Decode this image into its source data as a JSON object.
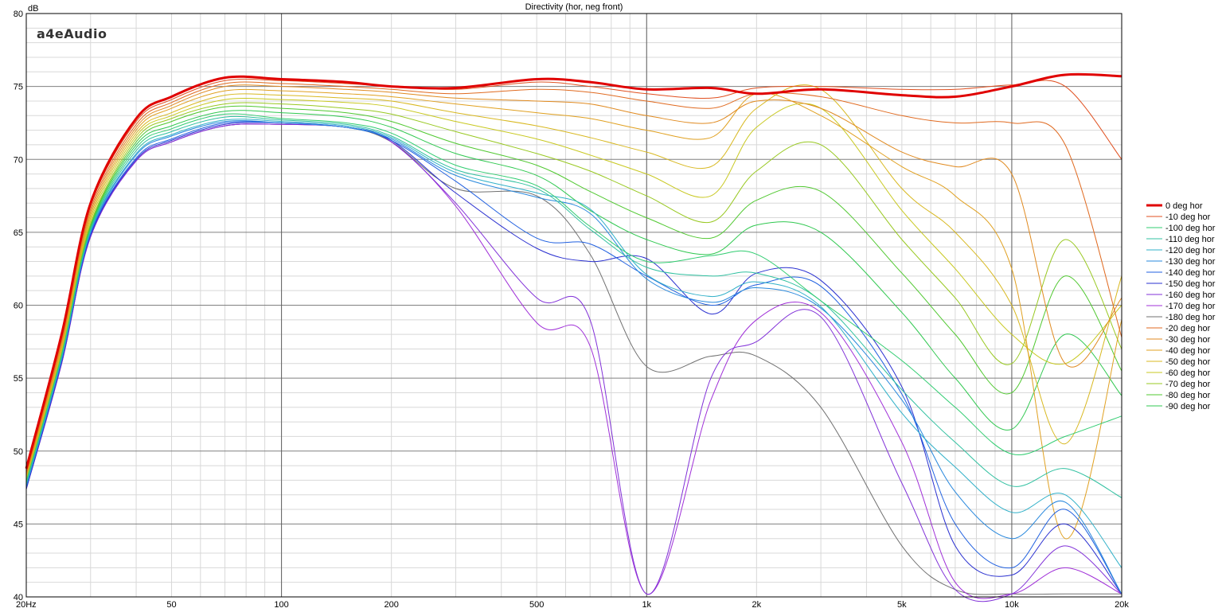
{
  "chart_data": {
    "type": "line",
    "title": "Directivity (hor, neg front)",
    "ylabel": "dB",
    "xlabel": "",
    "x_scale": "log",
    "xlim": [
      20,
      20000
    ],
    "ylim": [
      40,
      80
    ],
    "x_ticks": [
      {
        "value": 20,
        "label": "20Hz"
      },
      {
        "value": 50,
        "label": "50"
      },
      {
        "value": 100,
        "label": "100"
      },
      {
        "value": 200,
        "label": "200"
      },
      {
        "value": 500,
        "label": "500"
      },
      {
        "value": 1000,
        "label": "1k"
      },
      {
        "value": 2000,
        "label": "2k"
      },
      {
        "value": 5000,
        "label": "5k"
      },
      {
        "value": 10000,
        "label": "10k"
      },
      {
        "value": 20000,
        "label": "20k"
      }
    ],
    "y_ticks": [
      {
        "value": 40,
        "label": "40"
      },
      {
        "value": 45,
        "label": "45"
      },
      {
        "value": 50,
        "label": "50"
      },
      {
        "value": 55,
        "label": "55"
      },
      {
        "value": 60,
        "label": "60"
      },
      {
        "value": 65,
        "label": "65"
      },
      {
        "value": 70,
        "label": "70"
      },
      {
        "value": 75,
        "label": "75"
      },
      {
        "value": 80,
        "label": "80"
      }
    ],
    "grid": true,
    "legend_position": "right",
    "x": [
      20,
      25,
      30,
      40,
      50,
      70,
      100,
      150,
      200,
      300,
      500,
      700,
      1000,
      1500,
      2000,
      3000,
      5000,
      7000,
      10000,
      14000,
      20000
    ],
    "series": [
      {
        "name": "0 deg hor",
        "color": "#e00000",
        "width": 3,
        "values": [
          48.8,
          58.0,
          67.0,
          72.8,
          74.3,
          75.6,
          75.5,
          75.3,
          75.0,
          74.9,
          75.5,
          75.3,
          74.8,
          74.9,
          74.5,
          74.8,
          74.4,
          74.3,
          75.0,
          75.8,
          75.7
        ]
      },
      {
        "name": "-10 deg hor",
        "color": "#e05020",
        "width": 1,
        "values": [
          48.6,
          57.8,
          66.8,
          72.6,
          74.1,
          75.4,
          75.4,
          75.2,
          75.0,
          74.8,
          75.3,
          75.0,
          74.5,
          74.2,
          74.9,
          75.0,
          74.8,
          74.8,
          75.1,
          75.0,
          70.0
        ]
      },
      {
        "name": "-100 deg hor",
        "color": "#30cc70",
        "width": 1,
        "values": [
          47.9,
          56.6,
          65.3,
          70.8,
          72.1,
          73.1,
          72.8,
          72.5,
          71.8,
          69.6,
          68.2,
          65.4,
          63.0,
          63.4,
          63.5,
          60.3,
          56.2,
          53.0,
          49.8,
          51.0,
          52.4
        ]
      },
      {
        "name": "-110 deg hor",
        "color": "#30c0a0",
        "width": 1,
        "values": [
          47.8,
          56.5,
          65.2,
          70.6,
          71.9,
          72.9,
          72.7,
          72.4,
          71.6,
          69.3,
          68.0,
          65.2,
          62.6,
          62.0,
          62.2,
          60.3,
          54.2,
          50.6,
          47.6,
          48.8,
          46.8
        ]
      },
      {
        "name": "-120 deg hor",
        "color": "#30b0c8",
        "width": 1,
        "values": [
          47.7,
          56.4,
          65.1,
          70.4,
          71.7,
          72.7,
          72.6,
          72.3,
          71.5,
          69.1,
          67.7,
          66.6,
          62.1,
          60.6,
          61.6,
          59.9,
          52.6,
          48.9,
          45.8,
          47.0,
          42.0
        ]
      },
      {
        "name": "-130 deg hor",
        "color": "#2888dd",
        "width": 1,
        "values": [
          47.6,
          56.3,
          65.0,
          70.3,
          71.6,
          72.6,
          72.5,
          72.2,
          71.4,
          68.9,
          67.4,
          66.3,
          61.8,
          60.2,
          61.2,
          59.8,
          53.5,
          47.2,
          44.0,
          46.5,
          40.2
        ]
      },
      {
        "name": "-140 deg hor",
        "color": "#2060e0",
        "width": 1,
        "values": [
          47.5,
          56.2,
          64.9,
          70.1,
          71.4,
          72.5,
          72.5,
          72.2,
          71.3,
          68.5,
          64.6,
          64.2,
          62.0,
          60.0,
          61.4,
          61.3,
          53.9,
          45.0,
          42.0,
          46.0,
          40.2
        ]
      },
      {
        "name": "-150 deg hor",
        "color": "#2a30d0",
        "width": 1,
        "values": [
          47.4,
          56.1,
          64.8,
          70.0,
          71.3,
          72.4,
          72.5,
          72.2,
          71.3,
          67.7,
          63.9,
          63.0,
          63.2,
          59.4,
          62.2,
          61.7,
          54.4,
          43.5,
          41.5,
          45.0,
          40.2
        ]
      },
      {
        "name": "-160 deg hor",
        "color": "#8030d8",
        "width": 1,
        "values": [
          47.4,
          56.0,
          64.7,
          69.9,
          71.2,
          72.3,
          72.4,
          72.2,
          71.2,
          67.0,
          60.5,
          59.0,
          40.2,
          55.0,
          57.5,
          59.2,
          47.8,
          40.5,
          40.2,
          43.5,
          40.2
        ]
      },
      {
        "name": "-170 deg hor",
        "color": "#a030d8",
        "width": 1,
        "values": [
          47.4,
          56.0,
          64.7,
          69.9,
          71.2,
          72.3,
          72.4,
          72.2,
          71.2,
          66.8,
          58.8,
          57.2,
          40.2,
          53.5,
          59.0,
          59.5,
          50.6,
          41.0,
          40.2,
          42.0,
          40.2
        ]
      },
      {
        "name": "-180 deg hor",
        "color": "#707070",
        "width": 1,
        "values": [
          47.4,
          56.0,
          64.7,
          69.9,
          71.2,
          72.3,
          72.4,
          72.2,
          71.2,
          68.0,
          67.5,
          63.5,
          55.8,
          56.5,
          56.5,
          53.0,
          43.5,
          40.5,
          40.2,
          40.2,
          40.2
        ]
      },
      {
        "name": "-20 deg hor",
        "color": "#e06a20",
        "width": 1,
        "values": [
          48.5,
          57.6,
          66.6,
          72.4,
          73.9,
          75.2,
          75.2,
          75.0,
          74.8,
          74.5,
          74.8,
          74.6,
          74.0,
          73.5,
          74.5,
          74.3,
          73.0,
          72.5,
          72.5,
          71.0,
          57.8
        ]
      },
      {
        "name": "-30 deg hor",
        "color": "#e08a20",
        "width": 1,
        "values": [
          48.4,
          57.4,
          66.4,
          72.2,
          73.7,
          75.0,
          75.0,
          74.8,
          74.6,
          74.2,
          74.0,
          73.8,
          73.0,
          72.5,
          74.0,
          73.5,
          70.5,
          69.5,
          69.0,
          56.0,
          60.5
        ]
      },
      {
        "name": "-40 deg hor",
        "color": "#e0a020",
        "width": 1,
        "values": [
          48.3,
          57.2,
          66.2,
          72.0,
          73.5,
          74.7,
          74.7,
          74.5,
          74.3,
          73.8,
          73.2,
          72.8,
          72.0,
          71.5,
          74.5,
          73.0,
          69.5,
          67.5,
          62.5,
          44.0,
          59.0
        ]
      },
      {
        "name": "-50 deg hor",
        "color": "#d8b820",
        "width": 1,
        "values": [
          48.2,
          57.0,
          66.0,
          71.8,
          73.2,
          74.4,
          74.4,
          74.2,
          74.0,
          73.2,
          72.3,
          71.5,
          70.5,
          69.5,
          73.5,
          74.8,
          68.0,
          65.0,
          60.0,
          50.5,
          62.0
        ]
      },
      {
        "name": "-60 deg hor",
        "color": "#c8c820",
        "width": 1,
        "values": [
          48.1,
          56.9,
          65.8,
          71.6,
          73.0,
          74.1,
          74.1,
          73.9,
          73.6,
          72.6,
          71.4,
          70.3,
          69.0,
          67.5,
          72.2,
          73.5,
          66.5,
          62.5,
          58.0,
          56.0,
          60.0
        ]
      },
      {
        "name": "-70 deg hor",
        "color": "#98c820",
        "width": 1,
        "values": [
          48.0,
          56.8,
          65.6,
          71.4,
          72.8,
          73.8,
          73.8,
          73.5,
          73.1,
          71.9,
          70.4,
          69.2,
          67.5,
          65.7,
          69.2,
          71.0,
          64.5,
          60.5,
          56.0,
          64.5,
          57.0
        ]
      },
      {
        "name": "-80 deg hor",
        "color": "#50c830",
        "width": 1,
        "values": [
          48.0,
          56.7,
          65.5,
          71.2,
          72.6,
          73.6,
          73.5,
          73.2,
          72.6,
          71.1,
          69.6,
          67.8,
          66.0,
          64.6,
          67.2,
          67.8,
          62.2,
          58.0,
          54.0,
          62.0,
          55.5
        ]
      },
      {
        "name": "-90 deg hor",
        "color": "#30c850",
        "width": 1,
        "values": [
          47.9,
          56.6,
          65.4,
          71.0,
          72.3,
          73.3,
          73.2,
          72.9,
          72.2,
          70.4,
          68.9,
          66.5,
          64.5,
          63.5,
          65.5,
          65.0,
          59.5,
          55.0,
          51.5,
          58.0,
          53.8
        ]
      }
    ]
  },
  "logo_text": "a4eAudio"
}
